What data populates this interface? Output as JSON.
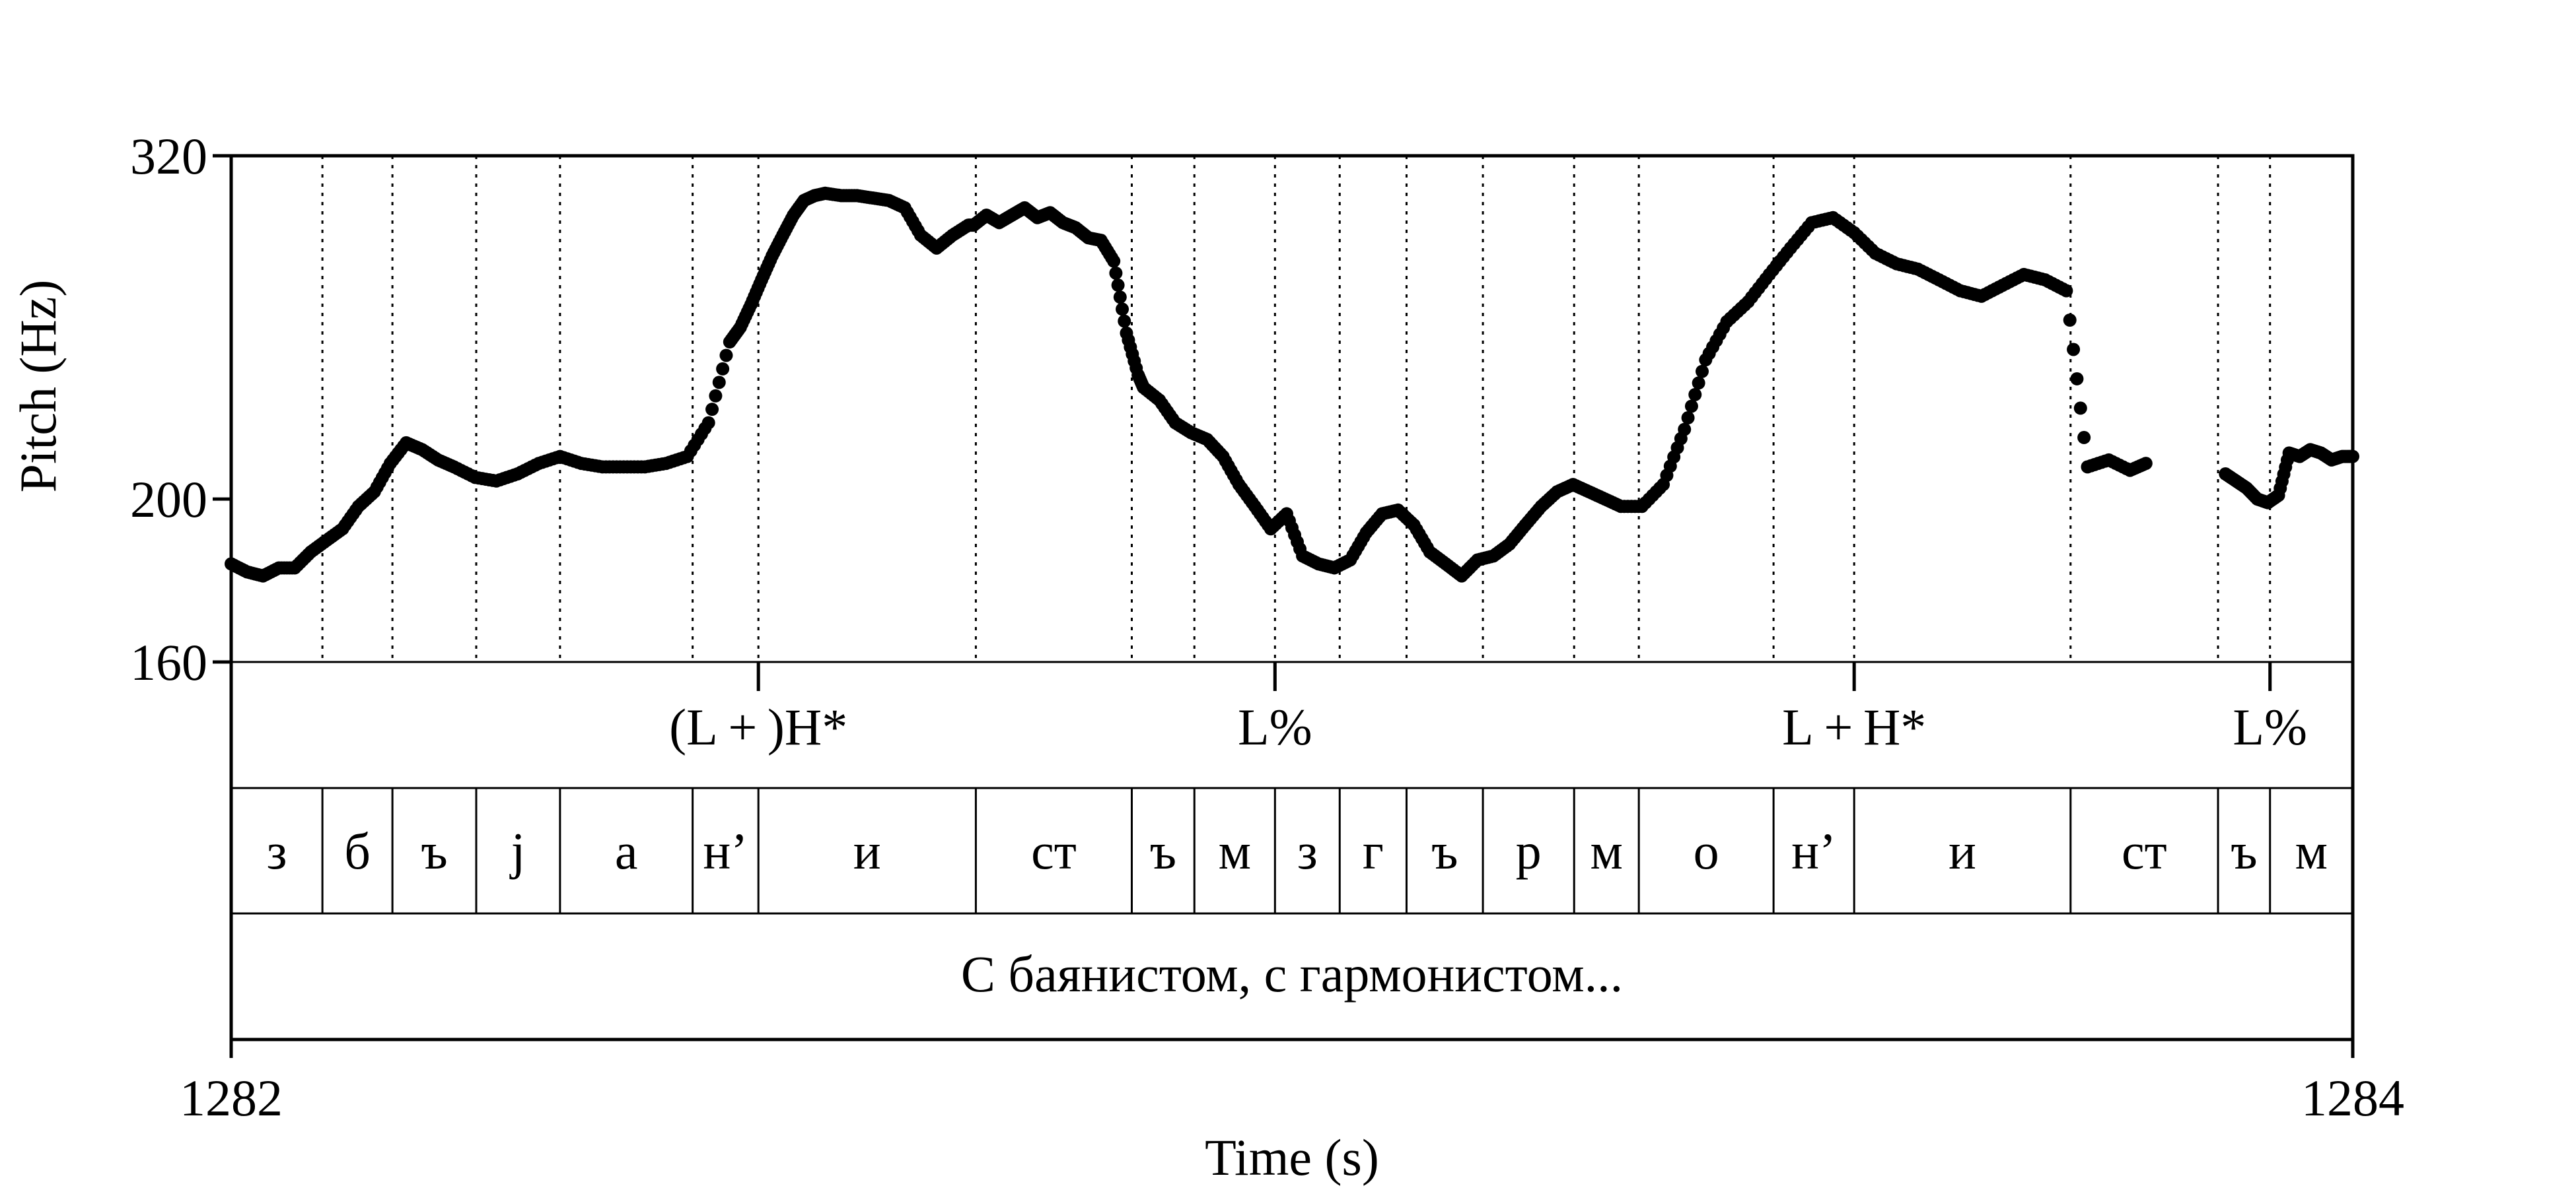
{
  "chart_data": {
    "type": "scatter",
    "title": "",
    "xlabel": "Time (s)",
    "ylabel": "Pitch (Hz)",
    "xlim": [
      1282,
      1284
    ],
    "ylim": [
      160,
      320
    ],
    "yscale": "log",
    "x_tick_labels": [
      "1282",
      "1284"
    ],
    "y_tick_labels": [
      "320",
      "200",
      "160"
    ],
    "y_ticks": [
      320,
      200,
      160
    ],
    "grid": "dotted vertical lines at segment boundaries",
    "legend": "none",
    "color": "#000000",
    "segment_boundaries": [
      1282.086,
      1282.152,
      1282.231,
      1282.31,
      1282.435,
      1282.497,
      1282.702,
      1282.849,
      1282.908,
      1282.984,
      1283.045,
      1283.108,
      1283.18,
      1283.266,
      1283.327,
      1283.454,
      1283.53,
      1283.734,
      1283.873,
      1283.922
    ],
    "tiers": {
      "tones": [
        {
          "label": "(L + )H*",
          "t": 1282.497
        },
        {
          "label": "L%",
          "t": 1282.984
        },
        {
          "label": "L + H*",
          "t": 1283.53
        },
        {
          "label": "L%",
          "t": 1283.922
        }
      ],
      "segments": [
        "з",
        "б",
        "ъ",
        "j",
        "а",
        "н’",
        "и",
        "ст",
        "ъ",
        "м",
        "з",
        "г",
        "ъ",
        "р",
        "м",
        "о",
        "н’",
        "и",
        "ст",
        "ъ",
        "м"
      ],
      "utterance": "С баянистом, с гармонистом..."
    },
    "series": [
      {
        "x": [
          1282.0,
          1282.015,
          1282.03,
          1282.045,
          1282.06,
          1282.075,
          1282.09,
          1282.105,
          1282.12,
          1282.135,
          1282.15,
          1282.165,
          1282.18,
          1282.195,
          1282.21,
          1282.23,
          1282.25,
          1282.27,
          1282.29,
          1282.31,
          1282.33,
          1282.35,
          1282.37,
          1282.39,
          1282.41,
          1282.43,
          1282.45,
          1282.47,
          1282.48,
          1282.49,
          1282.5,
          1282.51,
          1282.52,
          1282.53,
          1282.54,
          1282.55,
          1282.56,
          1282.575,
          1282.59,
          1282.605,
          1282.62,
          1282.635,
          1282.65,
          1282.665,
          1282.68,
          1282.695,
          1282.7,
          1282.712,
          1282.724,
          1282.736,
          1282.748,
          1282.76,
          1282.772,
          1282.784,
          1282.796,
          1282.808,
          1282.82,
          1282.832,
          1282.844,
          1282.855,
          1282.86,
          1282.875,
          1282.89,
          1282.905,
          1282.92,
          1282.935,
          1282.95,
          1282.965,
          1282.98,
          1282.995,
          1283.01,
          1283.025,
          1283.04,
          1283.055,
          1283.07,
          1283.085,
          1283.1,
          1283.115,
          1283.13,
          1283.145,
          1283.16,
          1283.175,
          1283.19,
          1283.205,
          1283.22,
          1283.235,
          1283.25,
          1283.265,
          1283.28,
          1283.295,
          1283.31,
          1283.33,
          1283.35,
          1283.37,
          1283.39,
          1283.41,
          1283.43,
          1283.45,
          1283.47,
          1283.49,
          1283.51,
          1283.53,
          1283.55,
          1283.57,
          1283.59,
          1283.61,
          1283.63,
          1283.65,
          1283.67,
          1283.69,
          1283.71,
          1283.73,
          1283.75,
          1283.77,
          1283.79,
          1283.805,
          1283.88,
          1283.89,
          1283.9,
          1283.91,
          1283.92,
          1283.93,
          1283.94,
          1283.95,
          1283.96,
          1283.97,
          1283.98,
          1283.99,
          1284.0
        ],
        "y": [
          183,
          181,
          180,
          182,
          182,
          186,
          189,
          192,
          198,
          202,
          210,
          216,
          214,
          211,
          209,
          206,
          205,
          207,
          210,
          212,
          210,
          209,
          209,
          209,
          210,
          212,
          222,
          248,
          253,
          261,
          270,
          279,
          287,
          295,
          301,
          303,
          304,
          303,
          303,
          302,
          301,
          298,
          287,
          282,
          287,
          291,
          291,
          295,
          292,
          295,
          298,
          294,
          296,
          292,
          290,
          286,
          285,
          277,
          251,
          237,
          233,
          229,
          222,
          219,
          217,
          212,
          204,
          198,
          192,
          196,
          185,
          183,
          182,
          184,
          191,
          196,
          197,
          193,
          186,
          183,
          180,
          184,
          185,
          188,
          193,
          198,
          202,
          204,
          202,
          200,
          198,
          198,
          204,
          220,
          242,
          255,
          262,
          272,
          282,
          292,
          294,
          288,
          280,
          276,
          274,
          270,
          266,
          264,
          268,
          272,
          270,
          266,
          209,
          211,
          208,
          210,
          207,
          205,
          203,
          200,
          199,
          201,
          213,
          212,
          214,
          213,
          211,
          212,
          212
        ]
      }
    ]
  }
}
